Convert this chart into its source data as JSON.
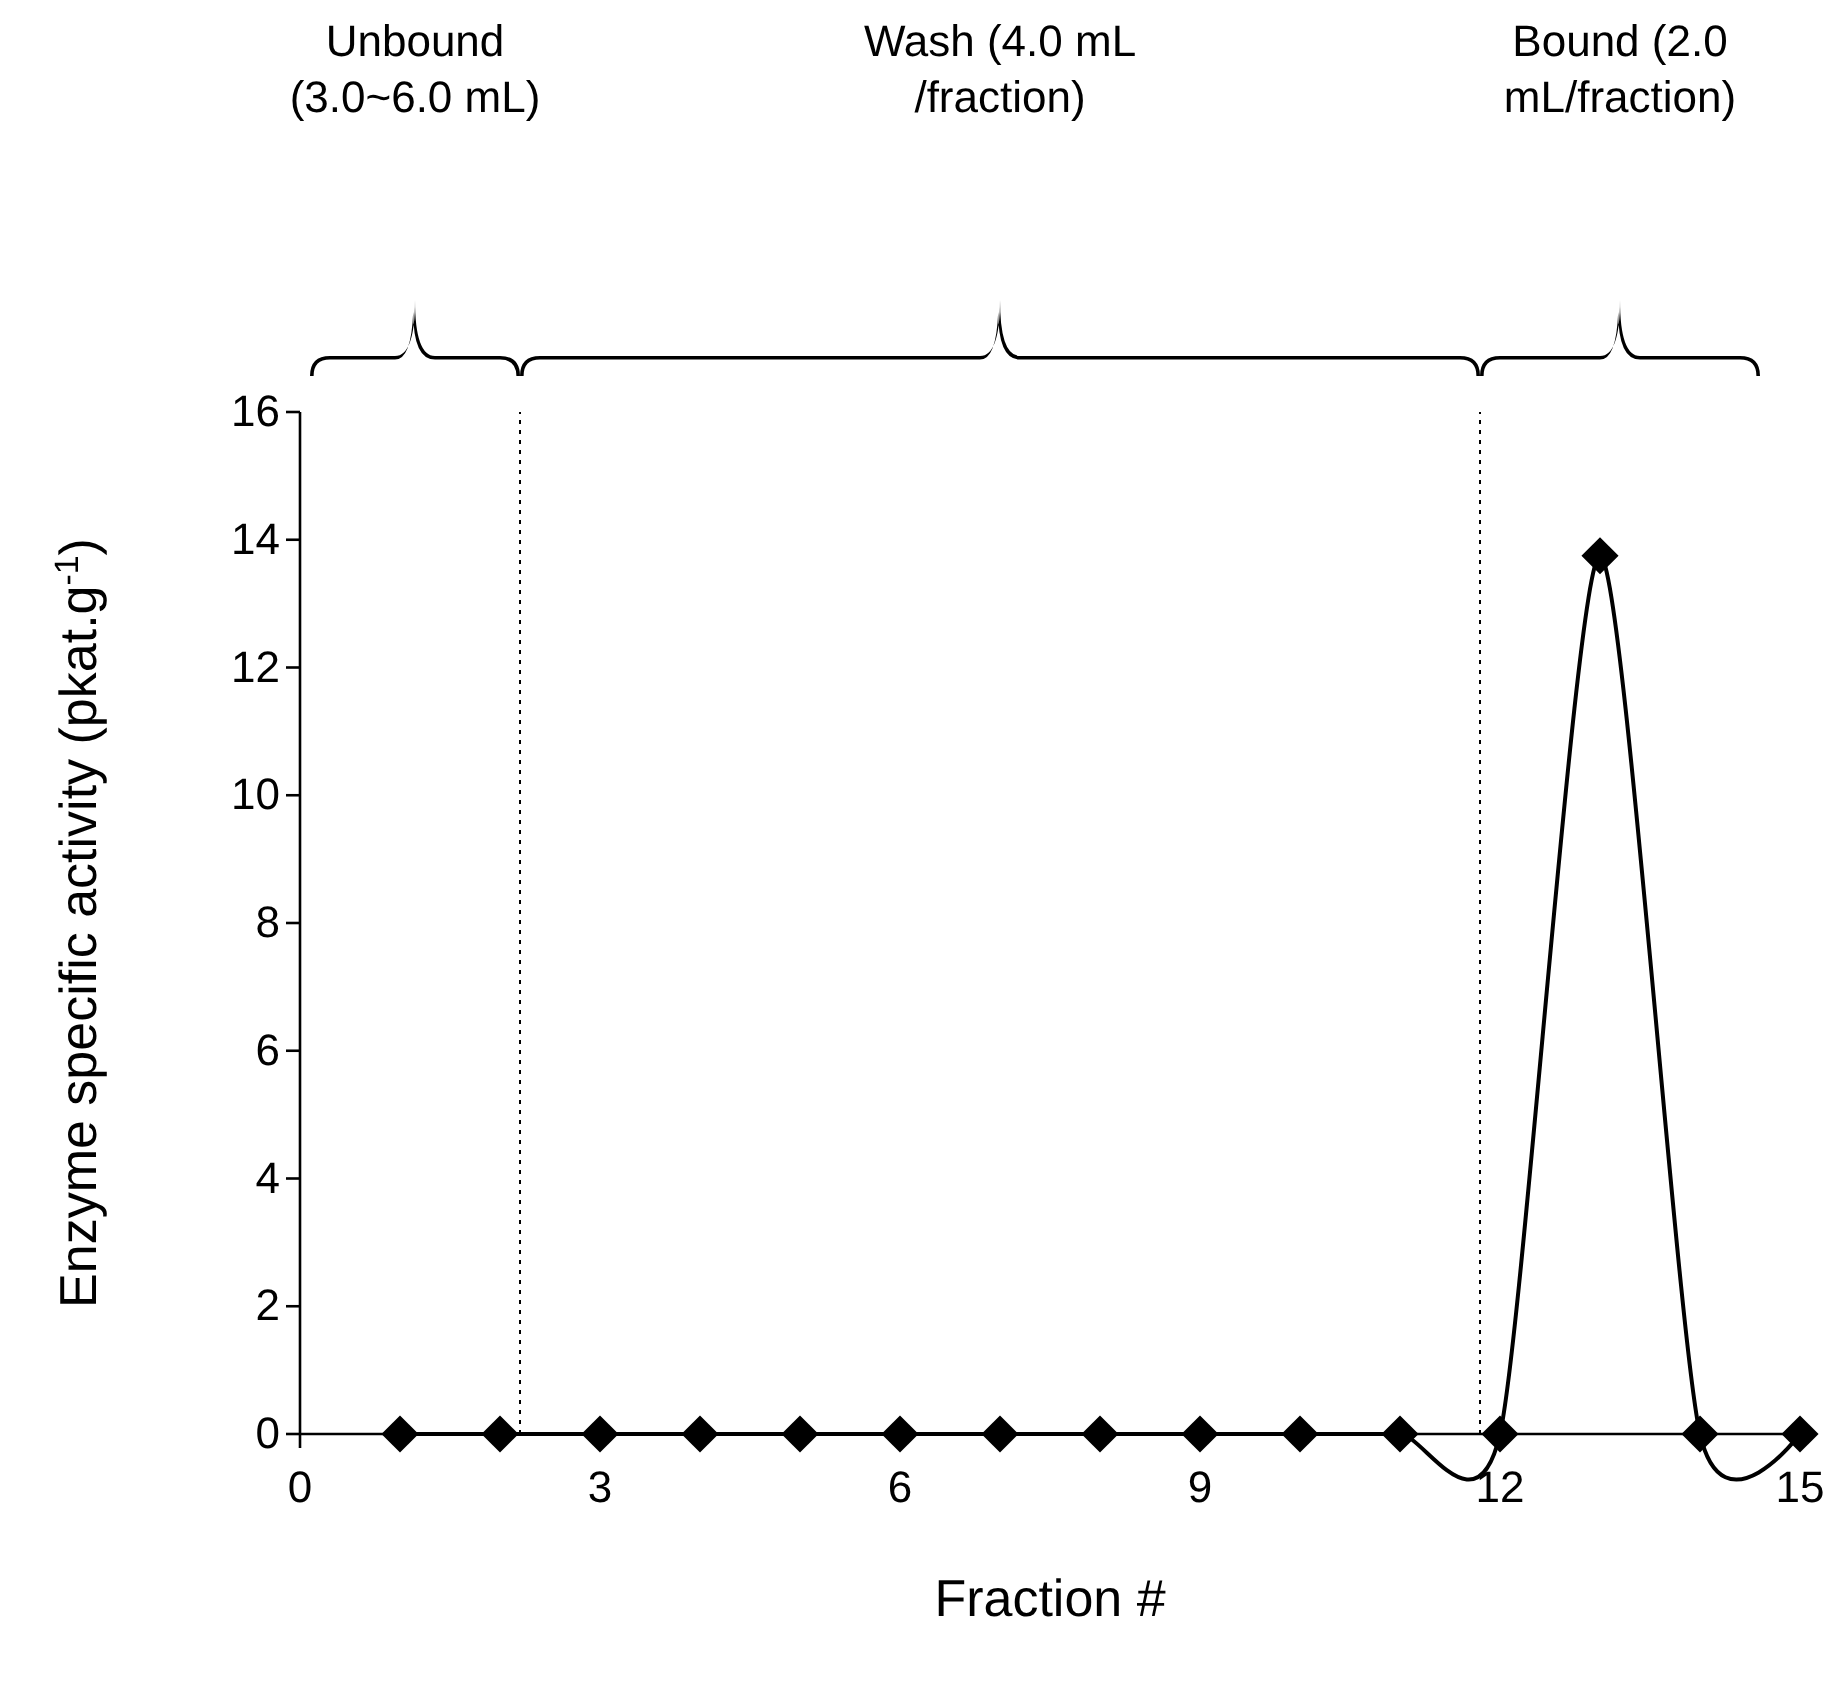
{
  "chart_data": {
    "type": "line",
    "xlabel": "Fraction #",
    "ylabel": "Enzyme specific activity (pkat.g$^{-1}$)",
    "x": [
      1,
      2,
      3,
      4,
      5,
      6,
      7,
      8,
      9,
      10,
      11,
      12,
      13,
      14,
      15
    ],
    "series": [
      {
        "color": "#000000",
        "values": [
          0,
          0,
          0,
          0,
          0,
          0,
          0,
          0,
          0,
          0,
          0,
          0,
          13.75,
          0,
          0
        ]
      }
    ],
    "xlim": [
      0,
      15
    ],
    "xticks": [
      0,
      3,
      6,
      9,
      12,
      15
    ],
    "ylim": [
      0,
      16
    ],
    "yticks": [
      0,
      2,
      4,
      6,
      8,
      10,
      12,
      14,
      16
    ],
    "marker": "diamond",
    "line_style": "solid",
    "grid": false,
    "ref_lines": [
      {
        "axis": "x",
        "value": 2.2,
        "line_style": "dotted"
      },
      {
        "axis": "x",
        "value": 11.8,
        "line_style": "dotted"
      }
    ],
    "annotations": [
      "Unbound\n(3.0~6.0 mL)",
      "Wash (4.0 mL\n/fraction)",
      "Bound (2.0\nmL/fraction)"
    ]
  }
}
